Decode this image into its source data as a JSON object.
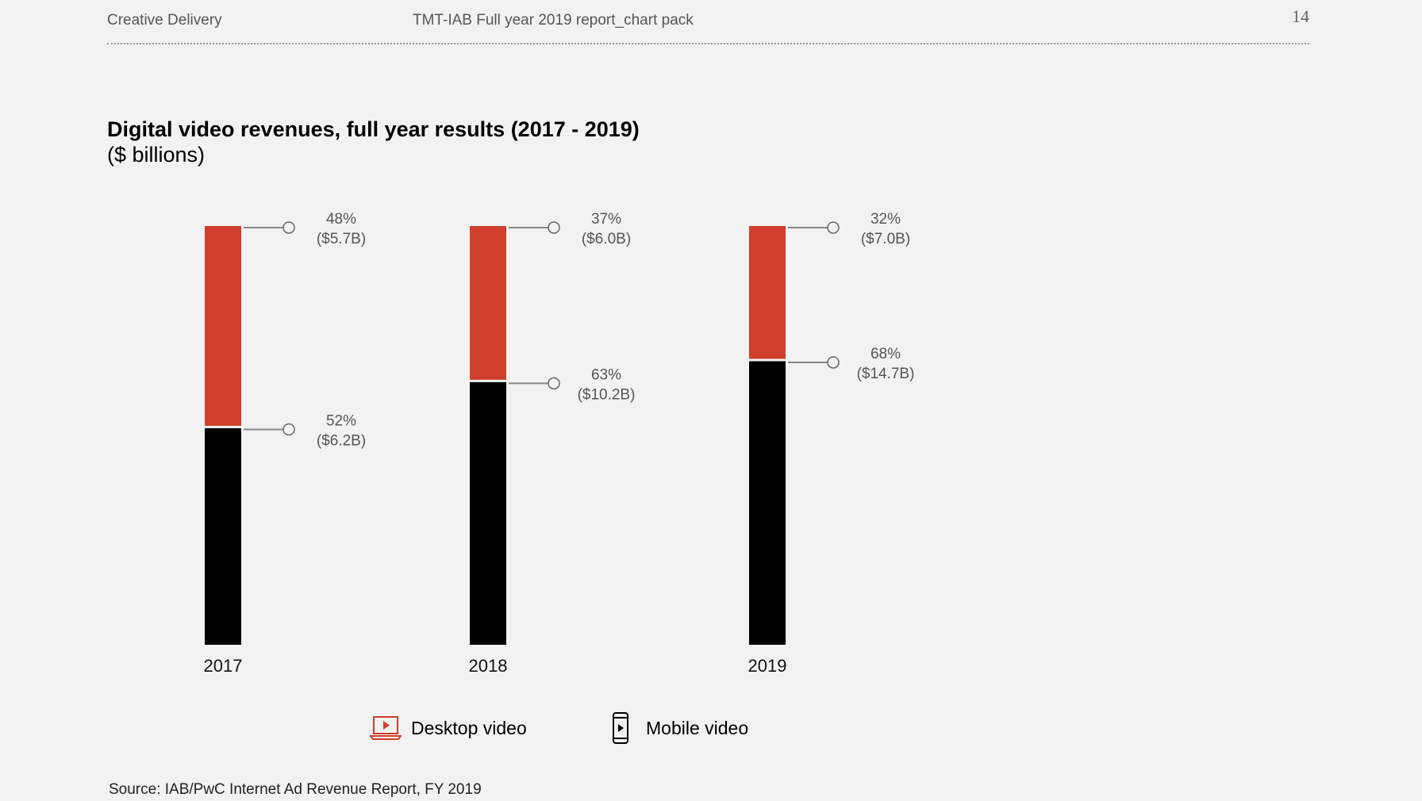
{
  "header": {
    "left": "Creative Delivery",
    "center": "TMT-IAB Full year 2019 report_chart pack",
    "page_number": "14"
  },
  "colors": {
    "desktop": "#cf3f2c",
    "mobile": "#000000",
    "background": "#f2f2f2"
  },
  "chart_data": {
    "type": "bar",
    "stacked": true,
    "title": "Digital video revenues, full year results (2017 - 2019)",
    "subtitle": "($ billions)",
    "categories": [
      "2017",
      "2018",
      "2019"
    ],
    "series": [
      {
        "name": "Mobile video",
        "icon": "mobile-phone-icon",
        "values": [
          6.2,
          10.2,
          14.7
        ],
        "percent": [
          52,
          63,
          68
        ],
        "labels_pct": [
          "52%",
          "63%",
          "68%"
        ],
        "labels_val": [
          "($6.2B)",
          "($10.2B)",
          "($14.7B)"
        ]
      },
      {
        "name": "Desktop video",
        "icon": "laptop-play-icon",
        "values": [
          5.7,
          6.0,
          7.0
        ],
        "percent": [
          48,
          37,
          32
        ],
        "labels_pct": [
          "48%",
          "37%",
          "32%"
        ],
        "labels_val": [
          "($5.7B)",
          "($6.0B)",
          "($7.0B)"
        ]
      }
    ],
    "legend_placement": "bottom",
    "grid": false
  },
  "source": "Source: IAB/PwC Internet Ad Revenue Report, FY 2019"
}
